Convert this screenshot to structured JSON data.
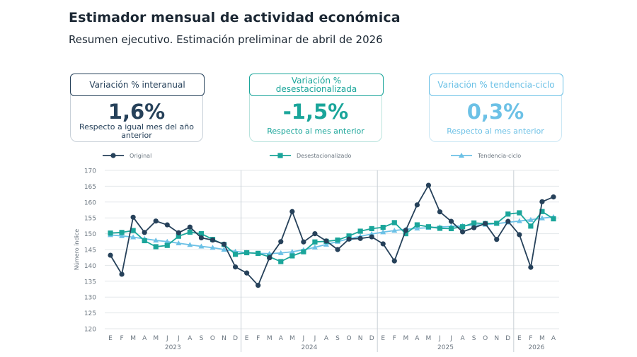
{
  "header": {
    "title": "Estimador mensual de actividad económica",
    "subtitle": "Resumen ejecutivo. Estimación preliminar de abril de 2026"
  },
  "kpis": [
    {
      "label": "Variación % interanual",
      "value": "1,6%",
      "description": "Respecto a igual mes del año anterior",
      "color": "#26415a"
    },
    {
      "label": "Variación % desestacionalizada",
      "value": "-1,5%",
      "description": "Respecto al mes anterior",
      "color": "#1aa59a"
    },
    {
      "label": "Variación % tendencia-ciclo",
      "value": "0,3%",
      "description": "Respecto al mes anterior",
      "color": "#6cc1e6"
    }
  ],
  "chart_data": {
    "type": "line",
    "ylabel": "Número índice",
    "xlabel": "",
    "ylim": [
      120,
      170
    ],
    "yticks": [
      120,
      125,
      130,
      135,
      140,
      145,
      150,
      155,
      160,
      165,
      170
    ],
    "grid": true,
    "legend_position": "top",
    "categories": [
      "E",
      "F",
      "M",
      "A",
      "M",
      "J",
      "J",
      "A",
      "S",
      "O",
      "N",
      "D",
      "E",
      "F",
      "M",
      "A",
      "M",
      "J",
      "J",
      "A",
      "S",
      "O",
      "N",
      "D",
      "E",
      "F",
      "M",
      "A",
      "M",
      "J",
      "J",
      "A",
      "S",
      "O",
      "N",
      "D",
      "E",
      "F",
      "M",
      "A"
    ],
    "years": [
      {
        "label": "2023",
        "start": 0,
        "end": 11
      },
      {
        "label": "2024",
        "start": 12,
        "end": 23
      },
      {
        "label": "2025",
        "start": 24,
        "end": 35
      },
      {
        "label": "2026",
        "start": 36,
        "end": 39
      }
    ],
    "series": [
      {
        "name": "Original",
        "color": "#26415a",
        "marker": "circle",
        "values": [
          143.2,
          137.2,
          155.2,
          150.4,
          154.0,
          152.8,
          150.3,
          152.1,
          148.7,
          148.0,
          146.7,
          139.5,
          137.6,
          133.7,
          142.4,
          147.5,
          157.0,
          147.4,
          150.0,
          147.7,
          145.0,
          148.3,
          148.5,
          149.0,
          146.8,
          141.4,
          151.1,
          159.1,
          165.3,
          156.9,
          153.9,
          150.6,
          151.9,
          153.2,
          148.2,
          153.9,
          149.7,
          139.4,
          160.1,
          161.6
        ]
      },
      {
        "name": "Desestacionalizado",
        "color": "#1aa59a",
        "marker": "square",
        "values": [
          150.2,
          150.4,
          151.0,
          147.8,
          145.9,
          146.3,
          149.2,
          150.5,
          150.0,
          148.2,
          146.6,
          143.5,
          144.0,
          143.8,
          142.7,
          141.2,
          143.0,
          144.3,
          147.4,
          147.6,
          148.0,
          149.3,
          150.8,
          151.6,
          152.0,
          153.5,
          150.0,
          152.8,
          152.2,
          151.7,
          151.6,
          152.2,
          153.4,
          153.2,
          153.3,
          156.2,
          156.6,
          152.4,
          157.0,
          154.7
        ]
      },
      {
        "name": "Tendencia-ciclo",
        "color": "#6cc1e6",
        "marker": "triangle",
        "values": [
          149.6,
          149.3,
          148.9,
          148.4,
          147.9,
          147.5,
          147.0,
          146.5,
          146.0,
          145.6,
          145.0,
          144.4,
          144.0,
          143.8,
          143.7,
          143.9,
          144.3,
          144.9,
          145.7,
          146.6,
          147.5,
          148.4,
          149.2,
          149.9,
          150.5,
          151.0,
          151.4,
          151.7,
          151.9,
          152.1,
          152.3,
          152.5,
          152.7,
          152.9,
          153.2,
          153.6,
          154.0,
          154.4,
          154.9,
          155.3
        ]
      }
    ]
  }
}
